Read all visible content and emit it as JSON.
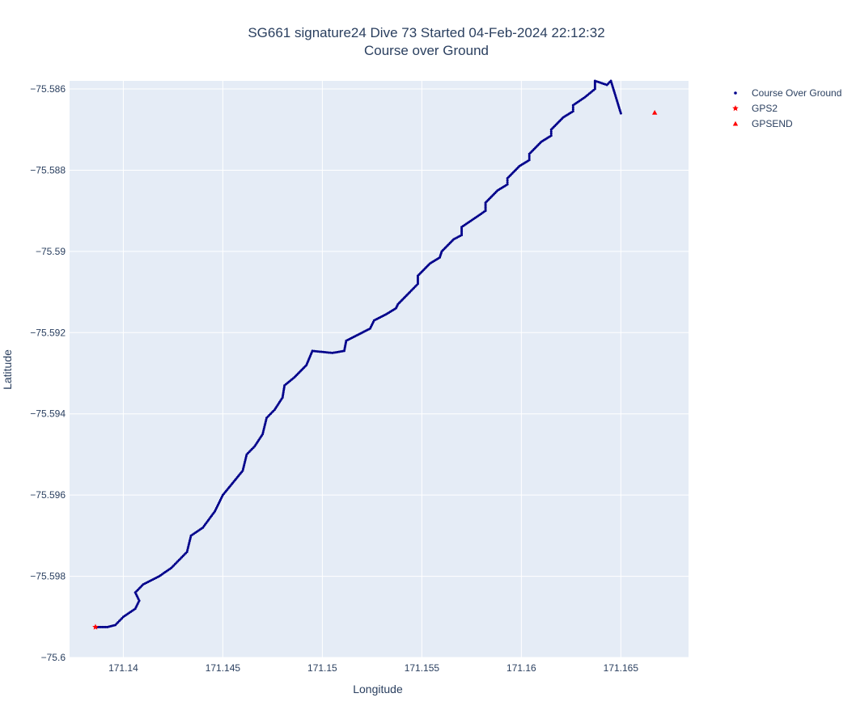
{
  "chart_data": {
    "type": "scatter",
    "title_line1": "SG661 signature24 Dive 73 Started 04-Feb-2024 22:12:32",
    "title_line2": "Course over Ground",
    "xlabel": "Longitude",
    "ylabel": "Latitude",
    "xlim": [
      171.1373,
      171.1684
    ],
    "ylim": [
      -75.6,
      -75.5858
    ],
    "x_ticks": [
      171.14,
      171.145,
      171.15,
      171.155,
      171.16,
      171.165
    ],
    "x_tick_labels": [
      "171.14",
      "171.145",
      "171.15",
      "171.155",
      "171.16",
      "171.165"
    ],
    "y_ticks": [
      -75.586,
      -75.588,
      -75.59,
      -75.592,
      -75.594,
      -75.596,
      -75.598,
      -75.6
    ],
    "y_tick_labels": [
      "−75.586",
      "−75.588",
      "−75.59",
      "−75.592",
      "−75.594",
      "−75.596",
      "−75.598",
      "−75.6"
    ],
    "grid": true,
    "legend_position": "top-right",
    "series": [
      {
        "name": "Course Over Ground",
        "marker": "circle",
        "color": "#00008b",
        "x": [
          171.1386,
          171.1392,
          171.1396,
          171.14,
          171.1406,
          171.1408,
          171.1406,
          171.141,
          171.1418,
          171.1424,
          171.1428,
          171.1432,
          171.1434,
          171.144,
          171.1446,
          171.145,
          171.1455,
          171.146,
          171.1462,
          171.1466,
          171.147,
          171.1472,
          171.1476,
          171.148,
          171.1481,
          171.1486,
          171.1492,
          171.1495,
          171.1505,
          171.1511,
          171.1512,
          171.1518,
          171.1524,
          171.1526,
          171.1532,
          171.1537,
          171.1538,
          171.1544,
          171.1548,
          171.1548,
          171.1554,
          171.1559,
          171.156,
          171.1566,
          171.157,
          171.157,
          171.1576,
          171.1582,
          171.1582,
          171.1588,
          171.1593,
          171.1593,
          171.1599,
          171.1604,
          171.1604,
          171.161,
          171.1615,
          171.1615,
          171.1621,
          171.1626,
          171.1626,
          171.1632,
          171.1637,
          171.1637,
          171.1643,
          171.1645,
          171.165
        ],
        "y": [
          -75.59925,
          -75.59925,
          -75.5992,
          -75.599,
          -75.5988,
          -75.5986,
          -75.5984,
          -75.5982,
          -75.598,
          -75.5978,
          -75.5976,
          -75.5974,
          -75.597,
          -75.5968,
          -75.5964,
          -75.596,
          -75.5957,
          -75.5954,
          -75.595,
          -75.5948,
          -75.5945,
          -75.5941,
          -75.5939,
          -75.5936,
          -75.5933,
          -75.5931,
          -75.5928,
          -75.59245,
          -75.5925,
          -75.59245,
          -75.5922,
          -75.59205,
          -75.5919,
          -75.5917,
          -75.59155,
          -75.5914,
          -75.5913,
          -75.591,
          -75.5908,
          -75.5906,
          -75.5903,
          -75.59015,
          -75.59,
          -75.5897,
          -75.5896,
          -75.5894,
          -75.5892,
          -75.589,
          -75.5888,
          -75.5885,
          -75.58835,
          -75.5882,
          -75.5879,
          -75.58775,
          -75.5876,
          -75.5873,
          -75.58715,
          -75.587,
          -75.5867,
          -75.58655,
          -75.5864,
          -75.5862,
          -75.586,
          -75.5858,
          -75.5859,
          -75.5858,
          -75.5866
        ]
      },
      {
        "name": "GPS2",
        "marker": "star",
        "color": "#ff0000",
        "x": [
          171.1386
        ],
        "y": [
          -75.59925
        ]
      },
      {
        "name": "GPSEND",
        "marker": "triangle-up",
        "color": "#ff0000",
        "x": [
          171.1667
        ],
        "y": [
          -75.58658
        ]
      }
    ]
  }
}
